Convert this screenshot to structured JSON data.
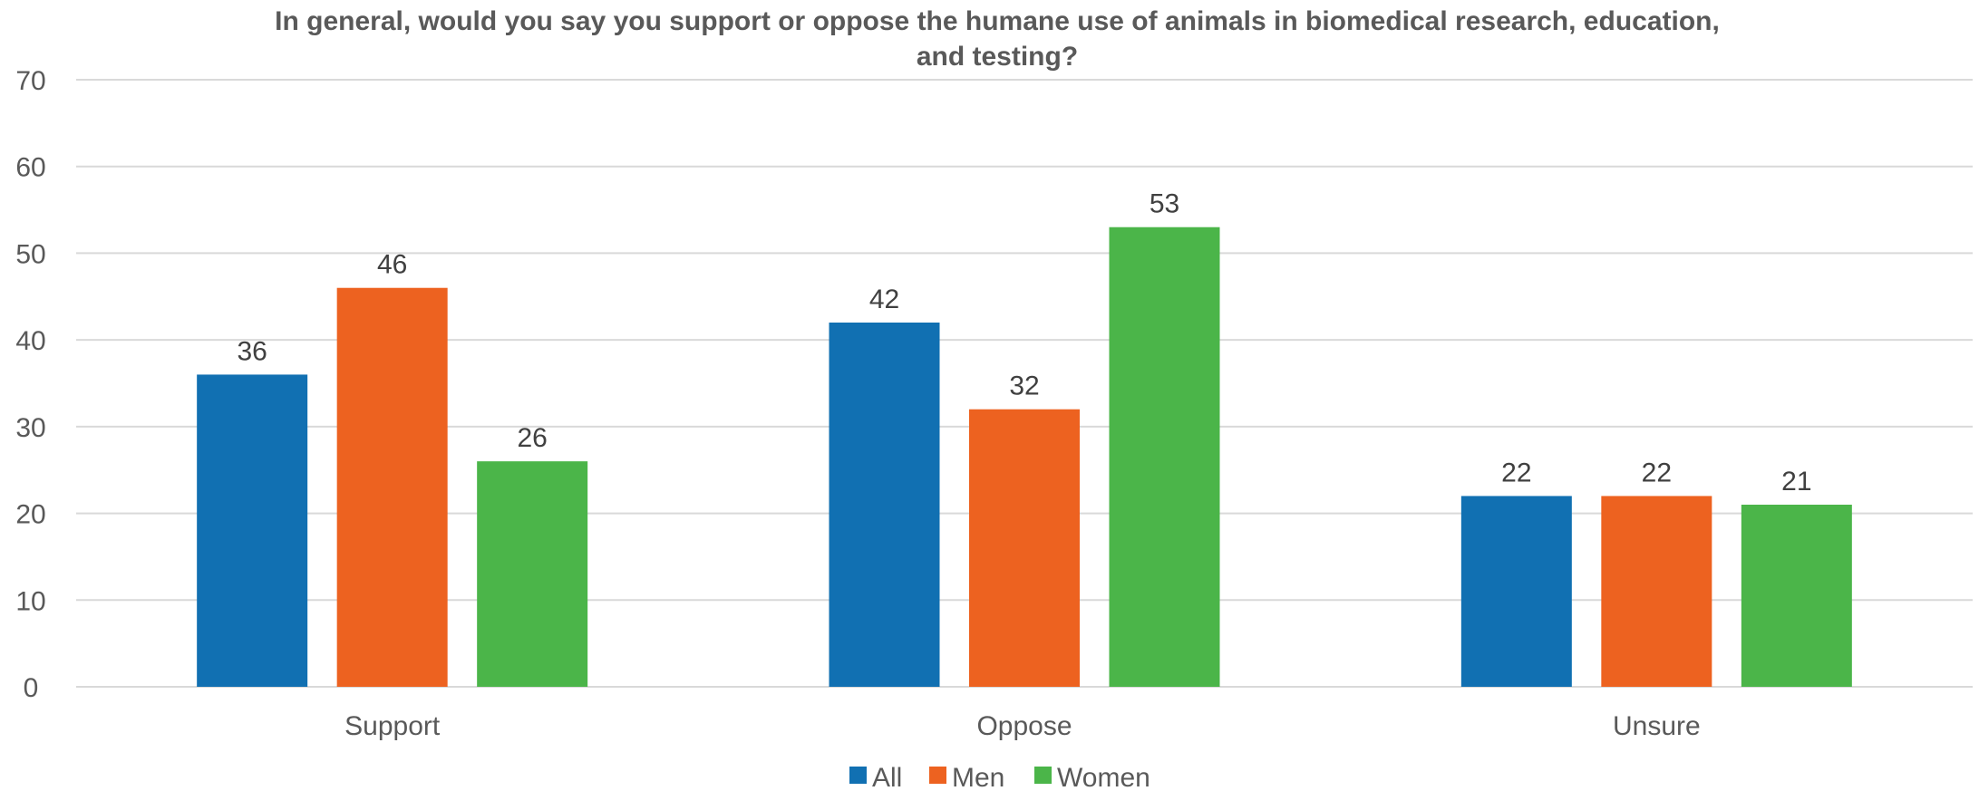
{
  "chart_data": {
    "type": "bar",
    "title_lines": [
      "In general, would you say you support or oppose the humane use of animals in biomedical research, education,",
      "and testing?"
    ],
    "categories": [
      "Support",
      "Oppose",
      "Unsure"
    ],
    "series": [
      {
        "name": "All",
        "values": [
          36,
          42,
          22
        ],
        "color": "#1170b2"
      },
      {
        "name": "Men",
        "values": [
          46,
          32,
          22
        ],
        "color": "#ed6220"
      },
      {
        "name": "Women",
        "values": [
          26,
          53,
          21
        ],
        "color": "#4bb549"
      }
    ],
    "ylim": [
      0,
      70
    ],
    "yticks": [
      0,
      10,
      20,
      30,
      40,
      50,
      60,
      70
    ],
    "grid": true,
    "legend_position": "bottom",
    "data_labels": true
  }
}
